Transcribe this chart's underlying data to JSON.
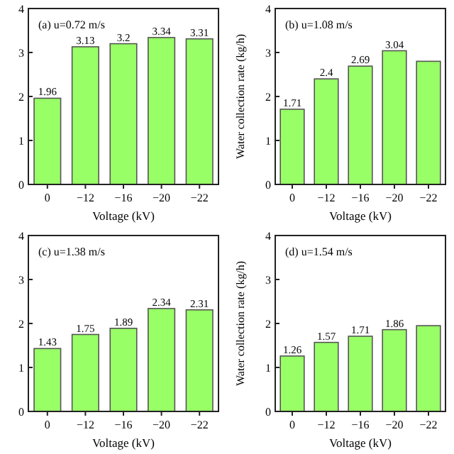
{
  "chart_data": [
    {
      "type": "bar",
      "categories": [
        "0",
        "−12",
        "−16",
        "−20",
        "−22"
      ],
      "values": [
        1.96,
        3.13,
        3.2,
        3.34,
        3.31
      ],
      "color": "#99ff66",
      "ylim": [
        0,
        4
      ],
      "yticks": [
        0,
        1,
        2,
        3,
        4
      ],
      "xlabel": "Voltage (kV)",
      "annotations": [
        "(a) u=0.72 m/s"
      ],
      "data_labels": true
    },
    {
      "type": "bar",
      "categories": [
        "0",
        "−12",
        "−16",
        "−20",
        "−22"
      ],
      "values": [
        1.71,
        2.4,
        2.69,
        3.04,
        2.8
      ],
      "value_labels": [
        "1.71",
        "2.4",
        "2.69",
        "3.04",
        null
      ],
      "color": "#99ff66",
      "ylim": [
        0,
        4
      ],
      "yticks": [
        0,
        1,
        2,
        3,
        4
      ],
      "xlabel": "Voltage (kV)",
      "ylabel": "Water collection rate (kg/h)",
      "annotations": [
        "(b) u=1.08 m/s"
      ]
    },
    {
      "type": "bar",
      "categories": [
        "0",
        "−12",
        "−16",
        "−20",
        "−22"
      ],
      "values": [
        1.43,
        1.75,
        1.89,
        2.34,
        2.31
      ],
      "color": "#99ff66",
      "ylim": [
        0,
        4
      ],
      "yticks": [
        0,
        1,
        2,
        3,
        4
      ],
      "xlabel": "Voltage (kV)",
      "annotations": [
        "(c) u=1.38 m/s"
      ],
      "data_labels": true
    },
    {
      "type": "bar",
      "categories": [
        "0",
        "−12",
        "−16",
        "−20",
        "−22"
      ],
      "values": [
        1.26,
        1.57,
        1.71,
        1.86,
        1.95
      ],
      "value_labels": [
        "1.26",
        "1.57",
        "1.71",
        "1.86",
        null
      ],
      "color": "#99ff66",
      "ylim": [
        0,
        4
      ],
      "yticks": [
        0,
        1,
        2,
        3,
        4
      ],
      "xlabel": "Voltage (kV)",
      "ylabel": "Water collection rate (kg/h)",
      "annotations": [
        "(d) u=1.54 m/s"
      ]
    }
  ]
}
